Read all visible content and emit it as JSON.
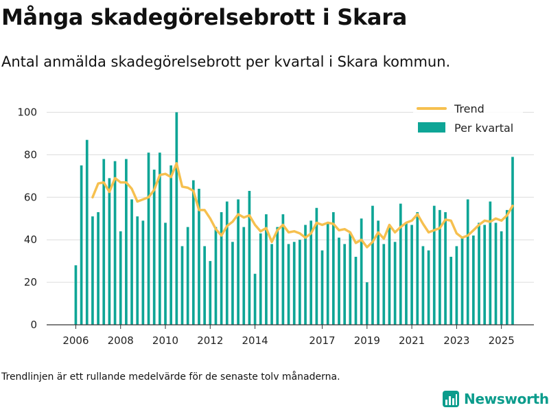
{
  "header": {
    "title": "Många skadegörelsebrott i Skara",
    "subtitle": "Antal anmälda skadegörelsebrott per kvartal i Skara kommun."
  },
  "footer": {
    "note": "Trendlinjen är ett rullande medelvärde för de senaste tolv månaderna.",
    "brand": "Newsworthy"
  },
  "colors": {
    "bar": "#0ea596",
    "trend": "#f6c04f",
    "grid": "#dcdcdc",
    "axis": "#333333",
    "brand": "#0b9c8c"
  },
  "chart_data": {
    "type": "bar",
    "title": "Antal anmälda skadegörelsebrott per kvartal i Skara kommun",
    "xlabel": "",
    "ylabel": "",
    "ylim": [
      0,
      105
    ],
    "yticks": [
      0,
      20,
      40,
      60,
      80,
      100
    ],
    "xlim": [
      2004.7,
      2026.45
    ],
    "xticks": [
      {
        "value": 2006,
        "label": "2006"
      },
      {
        "value": 2008,
        "label": "2008"
      },
      {
        "value": 2010,
        "label": "2010"
      },
      {
        "value": 2012,
        "label": "2012"
      },
      {
        "value": 2014,
        "label": "2014"
      },
      {
        "value": 2017,
        "label": "2017"
      },
      {
        "value": 2019,
        "label": "2019"
      },
      {
        "value": 2021,
        "label": "2021"
      },
      {
        "value": 2023,
        "label": "2023"
      },
      {
        "value": 2025,
        "label": "2025"
      }
    ],
    "legend": {
      "position": "top-right",
      "entries": [
        {
          "name": "Trend",
          "kind": "line"
        },
        {
          "name": "Per kvartal",
          "kind": "bar"
        }
      ]
    },
    "series": [
      {
        "name": "Per kvartal",
        "kind": "bar",
        "start_year": 2006,
        "quarters_per_year": 4,
        "values": [
          28,
          75,
          87,
          51,
          53,
          78,
          69,
          77,
          44,
          78,
          59,
          51,
          49,
          81,
          73,
          81,
          48,
          75,
          100,
          37,
          46,
          68,
          64,
          37,
          30,
          46,
          53,
          58,
          39,
          59,
          46,
          63,
          24,
          43,
          52,
          38,
          46,
          52,
          38,
          39,
          40,
          47,
          49,
          55,
          35,
          48,
          53,
          41,
          38,
          43,
          32,
          50,
          20,
          56,
          49,
          38,
          47,
          39,
          57,
          48,
          47,
          53,
          37,
          35,
          56,
          54,
          53,
          32,
          37,
          41,
          59,
          42,
          48,
          47,
          58,
          48,
          44,
          54,
          79
        ]
      },
      {
        "name": "Trend",
        "kind": "line",
        "start_quarter_index": 3,
        "values": [
          60,
          66.5,
          67,
          62.5,
          69,
          67,
          67,
          64,
          58,
          59,
          60,
          63.5,
          70.5,
          71,
          69.5,
          76,
          65,
          64.5,
          63,
          54,
          54,
          50,
          45,
          42,
          46.5,
          48.5,
          52,
          50.5,
          51.5,
          47,
          44,
          45.5,
          39,
          44.5,
          47,
          43.5,
          44,
          43,
          41,
          43,
          48,
          47,
          48,
          47.5,
          44.5,
          45,
          43.5,
          38.5,
          40,
          36.5,
          39,
          43.5,
          40.5,
          47,
          43.5,
          46,
          48,
          49,
          52,
          47.5,
          43.5,
          44.5,
          45.5,
          49.5,
          49,
          43,
          41,
          42,
          44.5,
          47,
          49,
          48.5,
          50,
          49,
          51.5,
          56
        ]
      }
    ]
  }
}
